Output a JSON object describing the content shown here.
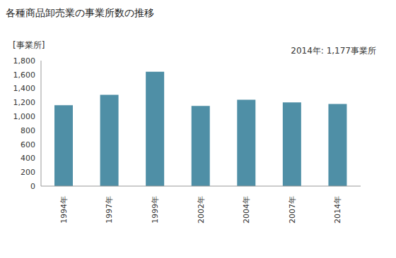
{
  "chart_data": {
    "type": "bar",
    "title": "各種商品卸売業の事業所数の推移",
    "y_label": "[事業所]",
    "annotation": "2014年: 1,177事業所",
    "categories": [
      "1994年",
      "1997年",
      "1999年",
      "2002年",
      "2004年",
      "2007年",
      "2014年"
    ],
    "values": [
      1160,
      1310,
      1640,
      1150,
      1240,
      1200,
      1177
    ],
    "color": "#4f8fa6",
    "ylim": [
      0,
      1800
    ],
    "yticks": [
      0,
      200,
      400,
      600,
      800,
      {
        "value": 1000,
        "label": "1,000"
      },
      {
        "value": 1200,
        "label": "1,200"
      },
      {
        "value": 1400,
        "label": "1,400"
      },
      {
        "value": 1600,
        "label": "1,600"
      },
      {
        "value": 1800,
        "label": "1,800"
      }
    ],
    "grid": false
  }
}
